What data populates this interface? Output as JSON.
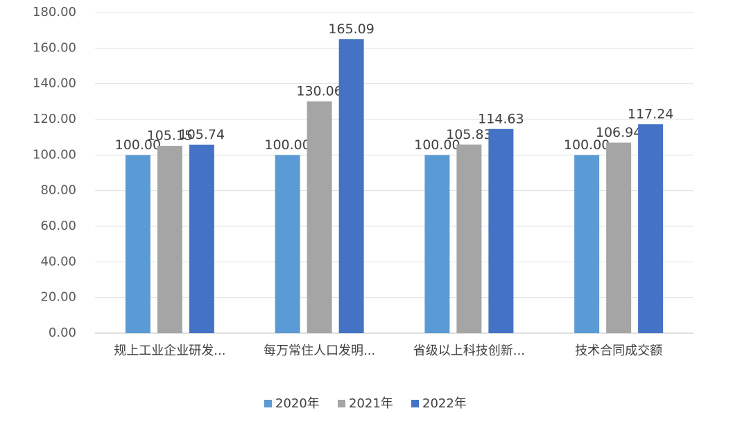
{
  "chart_data": {
    "type": "bar",
    "categories": [
      "规上工业企业研发...",
      "每万常住人口发明...",
      "省级以上科技创新...",
      "技术合同成交额"
    ],
    "series": [
      {
        "name": "2020年",
        "color": "#5b9bd5",
        "values": [
          100,
          100,
          100,
          100
        ],
        "value_labels": [
          "100.00",
          "100.00",
          "100.00",
          "100.00"
        ]
      },
      {
        "name": "2021年",
        "color": "#a5a5a5",
        "values": [
          105.15,
          130.06,
          105.83,
          106.94
        ],
        "value_labels": [
          "105.15",
          "130.06",
          "105.83",
          "106.94"
        ]
      },
      {
        "name": "2022年",
        "color": "#4472c4",
        "values": [
          105.74,
          165.09,
          114.63,
          117.24
        ],
        "value_labels": [
          "105.74",
          "165.09",
          "114.63",
          "117.24"
        ]
      }
    ],
    "ylim": [
      0,
      180
    ],
    "yticks": [
      {
        "value": 0,
        "label": "0.00"
      },
      {
        "value": 20,
        "label": "20.00"
      },
      {
        "value": 40,
        "label": "40.00"
      },
      {
        "value": 60,
        "label": "60.00"
      },
      {
        "value": 80,
        "label": "80.00"
      },
      {
        "value": 100,
        "label": "100.00"
      },
      {
        "value": 120,
        "label": "120.00"
      },
      {
        "value": 140,
        "label": "140.00"
      },
      {
        "value": 160,
        "label": "160.00"
      },
      {
        "value": 180,
        "label": "180.00"
      }
    ],
    "grid": true,
    "legend": "bottom"
  }
}
